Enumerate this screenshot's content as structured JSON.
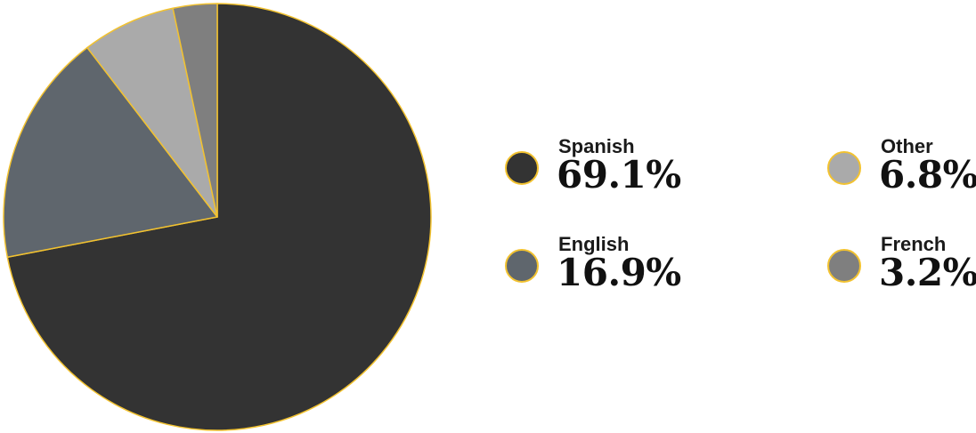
{
  "chart_data": {
    "type": "pie",
    "title": "",
    "categories": [
      "Spanish",
      "English",
      "Other",
      "French"
    ],
    "values": [
      69.1,
      16.9,
      6.8,
      3.2
    ],
    "value_labels": [
      "69.1%",
      "16.9%",
      "6.8%",
      "3.2%"
    ],
    "colors": [
      "#333333",
      "#5f666d",
      "#aaaaaa",
      "#7f7f7f"
    ],
    "slice_border_color": "#f2c230",
    "legend_placement": "right"
  }
}
